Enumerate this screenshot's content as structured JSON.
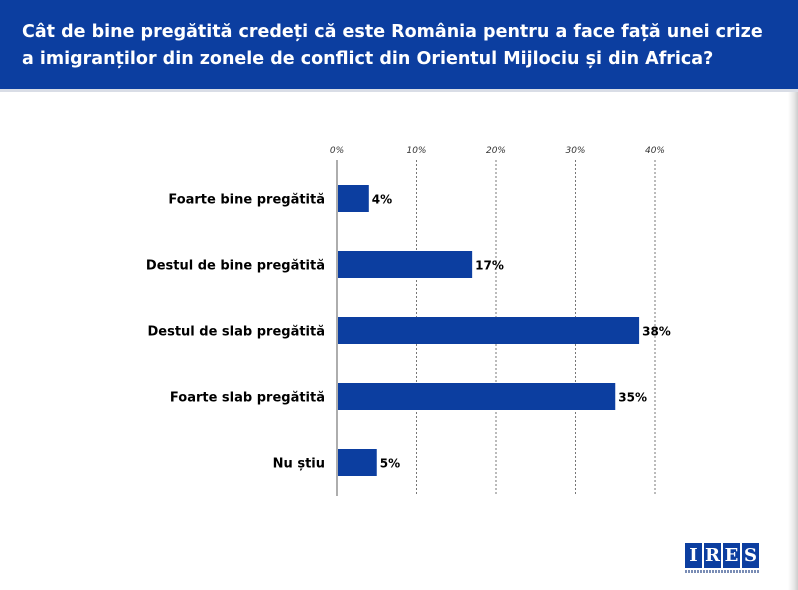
{
  "header": {
    "title": "Cât de bine pregătită credeți că este România pentru a face față unei crize a imigranților din  zonele de conflict din Orientul Mijlociu și din Africa?"
  },
  "colors": {
    "header_bg": "#0c3ea0",
    "bar": "#0c3ea0",
    "grid": "#777777"
  },
  "chart_data": {
    "type": "bar",
    "orientation": "horizontal",
    "categories": [
      "Foarte bine pregătită",
      "Destul de bine pregătită",
      "Destul de slab pregătită",
      "Foarte slab pregătită",
      "Nu știu"
    ],
    "values": [
      4,
      17,
      38,
      35,
      5
    ],
    "value_labels": [
      "4%",
      "17%",
      "38%",
      "35%",
      "5%"
    ],
    "xlim": [
      0,
      40
    ],
    "ticks": [
      0,
      10,
      20,
      30,
      40
    ],
    "tick_labels": [
      "0%",
      "10%",
      "20%",
      "30%",
      "40%"
    ],
    "grid": true,
    "tick_axis_position": "top"
  },
  "logo": {
    "letters": [
      "I",
      "R",
      "E",
      "S"
    ]
  }
}
